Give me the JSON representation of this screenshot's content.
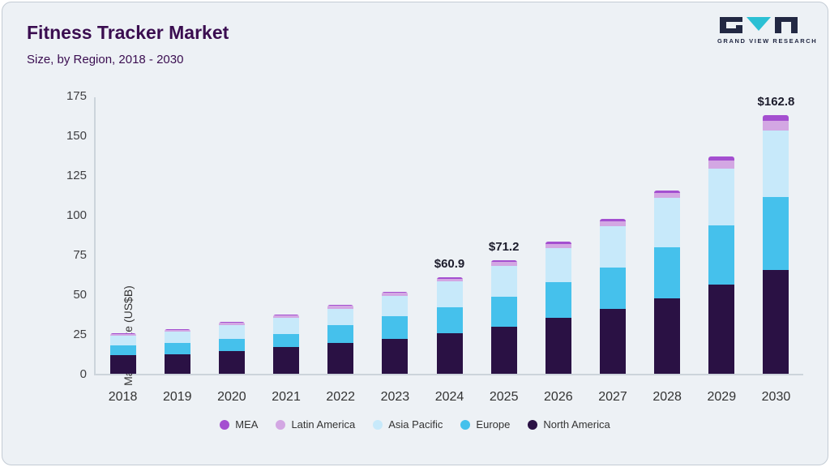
{
  "header": {
    "title": "Fitness Tracker Market",
    "subtitle": "Size, by Region, 2018 - 2030",
    "logo_text": "GRAND VIEW RESEARCH"
  },
  "colors": {
    "background": "#edf1f5",
    "title": "#3a0d50",
    "axis": "#ccd4db",
    "logo_dark": "#222843",
    "logo_teal": "#2bc0d4"
  },
  "chart_data": {
    "type": "bar",
    "stacked": true,
    "title": "Fitness Tracker Market Size, by Region, 2018 - 2030",
    "xlabel": "",
    "ylabel": "Market Size (US$B)",
    "ylim": [
      0,
      175
    ],
    "yticks": [
      0,
      25,
      50,
      75,
      100,
      125,
      150,
      175
    ],
    "grid": false,
    "legend_position": "bottom",
    "categories": [
      "2018",
      "2019",
      "2020",
      "2021",
      "2022",
      "2023",
      "2024",
      "2025",
      "2026",
      "2027",
      "2028",
      "2029",
      "2030"
    ],
    "series": [
      {
        "name": "North America",
        "color": "#2a1144",
        "values": [
          11.5,
          12.5,
          14.5,
          17.0,
          19.5,
          22.0,
          25.5,
          29.5,
          35.0,
          41.0,
          47.5,
          56.0,
          65.5
        ]
      },
      {
        "name": "Europe",
        "color": "#45c1ec",
        "values": [
          6.5,
          7.0,
          7.5,
          8.0,
          11.0,
          14.0,
          16.5,
          19.0,
          22.5,
          26.0,
          32.0,
          37.5,
          45.5
        ]
      },
      {
        "name": "Asia Pacific",
        "color": "#c7e9fa",
        "values": [
          6.0,
          7.0,
          8.5,
          10.0,
          10.5,
          13.0,
          16.0,
          19.5,
          21.5,
          26.0,
          31.0,
          35.5,
          42.0
        ]
      },
      {
        "name": "Latin America",
        "color": "#d3a7e3",
        "values": [
          1.0,
          1.2,
          1.5,
          1.8,
          1.8,
          1.8,
          1.9,
          2.2,
          2.7,
          3.1,
          3.5,
          5.0,
          6.0
        ]
      },
      {
        "name": "MEA",
        "color": "#a44fd0",
        "values": [
          0.4,
          0.5,
          0.6,
          0.7,
          0.8,
          0.9,
          1.0,
          1.0,
          1.3,
          1.4,
          1.5,
          2.5,
          3.8
        ]
      }
    ],
    "annotations": [
      {
        "category": "2024",
        "text": "$60.9"
      },
      {
        "category": "2025",
        "text": "$71.2"
      },
      {
        "category": "2030",
        "text": "$162.8"
      }
    ],
    "legend": [
      "MEA",
      "Latin America",
      "Asia Pacific",
      "Europe",
      "North America"
    ]
  }
}
